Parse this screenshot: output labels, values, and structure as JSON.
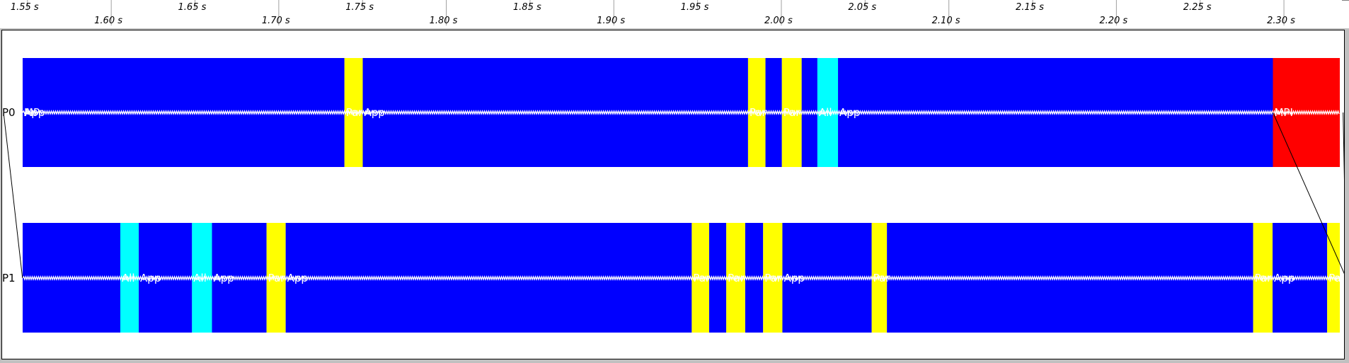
{
  "chart_data": {
    "type": "timeline",
    "title": "",
    "xlabel": "",
    "ylabel": "",
    "x_unit": "s",
    "xlim": [
      1.5336,
      2.3376
    ],
    "ticks": [
      {
        "value": 1.55,
        "label": "1.55 s",
        "row": "upper"
      },
      {
        "value": 1.6,
        "label": "1.60 s",
        "row": "lower"
      },
      {
        "value": 1.65,
        "label": "1.65 s",
        "row": "upper"
      },
      {
        "value": 1.7,
        "label": "1.70 s",
        "row": "lower"
      },
      {
        "value": 1.75,
        "label": "1.75 s",
        "row": "upper"
      },
      {
        "value": 1.8,
        "label": "1.80 s",
        "row": "lower"
      },
      {
        "value": 1.85,
        "label": "1.85 s",
        "row": "upper"
      },
      {
        "value": 1.9,
        "label": "1.90 s",
        "row": "lower"
      },
      {
        "value": 1.95,
        "label": "1.95 s",
        "row": "upper"
      },
      {
        "value": 2.0,
        "label": "2.00 s",
        "row": "lower"
      },
      {
        "value": 2.05,
        "label": "2.05 s",
        "row": "upper"
      },
      {
        "value": 2.1,
        "label": "2.10 s",
        "row": "lower"
      },
      {
        "value": 2.15,
        "label": "2.15 s",
        "row": "upper"
      },
      {
        "value": 2.2,
        "label": "2.20 s",
        "row": "lower"
      },
      {
        "value": 2.25,
        "label": "2.25 s",
        "row": "upper"
      },
      {
        "value": 2.3,
        "label": "2.30 s",
        "row": "lower"
      }
    ],
    "colors": {
      "MPI": "#ff0000",
      "Application": "#0000ff",
      "Par": "#ffff00",
      "All": "#00ffff"
    },
    "lanes": [
      {
        "name": "P0",
        "segments": [
          {
            "start": 1.5338,
            "end": 1.5353,
            "state": "Application",
            "label": ""
          },
          {
            "start": 1.5353,
            "end": 1.5466,
            "state": "MPI",
            "label": "MP"
          },
          {
            "start": 1.5466,
            "end": 1.7388,
            "state": "Application",
            "label": "App"
          },
          {
            "start": 1.7388,
            "end": 1.7497,
            "state": "Par",
            "label": "Par"
          },
          {
            "start": 1.7497,
            "end": 1.9797,
            "state": "Application",
            "label": "App"
          },
          {
            "start": 1.9797,
            "end": 1.9901,
            "state": "Par",
            "label": "Par"
          },
          {
            "start": 1.9901,
            "end": 1.9999,
            "state": "Application",
            "label": ""
          },
          {
            "start": 1.9999,
            "end": 2.0117,
            "state": "Par",
            "label": "Par"
          },
          {
            "start": 2.0117,
            "end": 2.0211,
            "state": "Application",
            "label": ""
          },
          {
            "start": 2.0211,
            "end": 2.0334,
            "state": "All",
            "label": "All"
          },
          {
            "start": 2.0334,
            "end": 2.293,
            "state": "Application",
            "label": "App"
          },
          {
            "start": 2.293,
            "end": 2.3336,
            "state": "MPI",
            "label": "MPI"
          },
          {
            "start": 2.3336,
            "end": 2.3372,
            "state": "Application",
            "label": ""
          }
        ]
      },
      {
        "name": "P1",
        "segments": [
          {
            "start": 1.5338,
            "end": 1.605,
            "state": "Application",
            "label": ""
          },
          {
            "start": 1.605,
            "end": 1.616,
            "state": "All",
            "label": "All"
          },
          {
            "start": 1.616,
            "end": 1.6478,
            "state": "Application",
            "label": "App"
          },
          {
            "start": 1.6478,
            "end": 1.6597,
            "state": "All",
            "label": "All"
          },
          {
            "start": 1.6597,
            "end": 1.6923,
            "state": "Application",
            "label": "App"
          },
          {
            "start": 1.6923,
            "end": 1.7037,
            "state": "Par",
            "label": "Par"
          },
          {
            "start": 1.7037,
            "end": 1.9461,
            "state": "Application",
            "label": "App"
          },
          {
            "start": 1.9461,
            "end": 1.9565,
            "state": "Par",
            "label": "Par"
          },
          {
            "start": 1.9565,
            "end": 1.9667,
            "state": "Application",
            "label": ""
          },
          {
            "start": 1.9667,
            "end": 1.978,
            "state": "Par",
            "label": "Par"
          },
          {
            "start": 1.978,
            "end": 1.9887,
            "state": "Application",
            "label": ""
          },
          {
            "start": 1.9887,
            "end": 2.0002,
            "state": "Par",
            "label": "Par"
          },
          {
            "start": 2.0002,
            "end": 2.0535,
            "state": "Application",
            "label": "App"
          },
          {
            "start": 2.0535,
            "end": 2.0626,
            "state": "Par",
            "label": "Par"
          },
          {
            "start": 2.0626,
            "end": 2.2812,
            "state": "Application",
            "label": ""
          },
          {
            "start": 2.2812,
            "end": 2.2928,
            "state": "Par",
            "label": "Par"
          },
          {
            "start": 2.2928,
            "end": 2.3254,
            "state": "Application",
            "label": "App"
          },
          {
            "start": 2.3254,
            "end": 2.3368,
            "state": "Par",
            "label": "Par"
          },
          {
            "start": 2.3368,
            "end": 2.3372,
            "state": "Application",
            "label": ""
          }
        ]
      }
    ],
    "messages": [
      {
        "from": "P0",
        "to": "P1",
        "send_time": 1.5353,
        "recv_time": 1.5466
      },
      {
        "from": "P1",
        "to": "P0",
        "send_time": 2.3368,
        "recv_time": 2.3349
      },
      {
        "from": "P0",
        "to": "P1",
        "send_time": 2.293,
        "recv_time": 2.3368
      }
    ]
  }
}
